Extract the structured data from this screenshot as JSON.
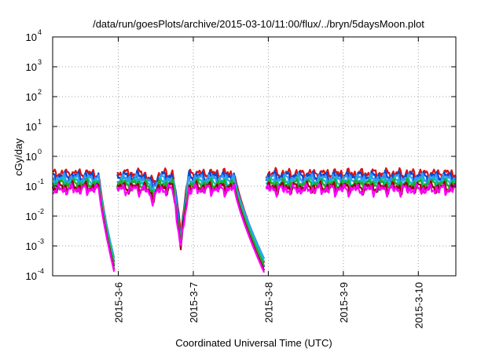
{
  "chart_data": {
    "type": "line",
    "title": "/data/run/goesPlots/archive/2015-03-10/11:00/flux/../bryn/5daysMoon.plot",
    "xlabel": "Coordinated Universal Time (UTC)",
    "ylabel": "cGy/day",
    "y_scale": "log",
    "ylim": [
      0.0001,
      10000
    ],
    "xlim": [
      "2015-03-05T03:00",
      "2015-03-10T12:00"
    ],
    "grid": true,
    "legend": "none",
    "x_ticks": [
      "2015-3-6",
      "2015-3-7",
      "2015-3-8",
      "2015-3-9",
      "2015-3-10"
    ],
    "y_ticks": [
      {
        "base": "10",
        "exp": "-4",
        "value": 0.0001
      },
      {
        "base": "10",
        "exp": "-3",
        "value": 0.001
      },
      {
        "base": "10",
        "exp": "-2",
        "value": 0.01
      },
      {
        "base": "10",
        "exp": "-1",
        "value": 0.1
      },
      {
        "base": "10",
        "exp": "0",
        "value": 1
      },
      {
        "base": "10",
        "exp": "1",
        "value": 10
      },
      {
        "base": "10",
        "exp": "2",
        "value": 100
      },
      {
        "base": "10",
        "exp": "3",
        "value": 1000
      },
      {
        "base": "10",
        "exp": "4",
        "value": 10000
      }
    ],
    "x_data_range": [
      "2015-03-05T03:00",
      "2015-03-10T12:00"
    ],
    "dropouts": [
      {
        "start": "2015-03-05T17:48",
        "min_time": "2015-03-05T22:48",
        "end": "2015-03-05T23:36"
      },
      {
        "start": "2015-03-07T13:12",
        "min_time": "2015-03-07T22:48",
        "end": "2015-03-07T23:12"
      }
    ],
    "spikes": [
      {
        "time": "2015-03-06T20:00",
        "depth": 0.97
      },
      {
        "time": "2015-03-06T11:00",
        "depth": 0.15
      }
    ],
    "series": [
      {
        "color": "#dd1111",
        "base": 0.27,
        "dip_floor": 0.00025
      },
      {
        "color": "#0d47cc",
        "base": 0.22,
        "dip_floor": 0.00018
      },
      {
        "color": "#3399ff",
        "base": 0.18,
        "dip_floor": 0.00035
      },
      {
        "color": "#11c0bb",
        "base": 0.14,
        "dip_floor": 0.00028
      },
      {
        "color": "#22aa22",
        "base": 0.12,
        "dip_floor": 0.0002
      },
      {
        "color": "#990011",
        "base": 0.095,
        "dip_floor": 0.00014
      },
      {
        "color": "#ff00ff",
        "base": 0.08,
        "dip_floor": 0.00012
      }
    ]
  }
}
